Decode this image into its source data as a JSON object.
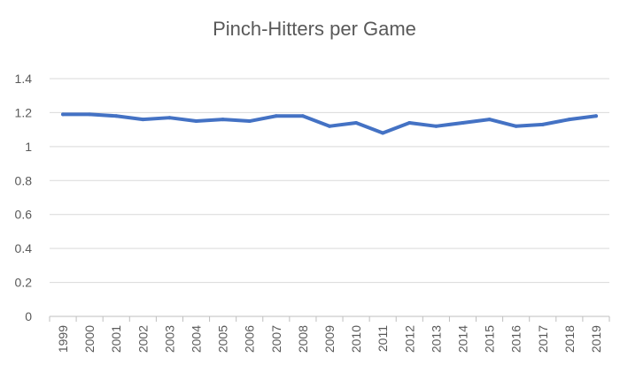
{
  "chart_data": {
    "type": "line",
    "title": "Pinch-Hitters per Game",
    "xlabel": "",
    "ylabel": "",
    "ylim": [
      0,
      1.4
    ],
    "yticks": [
      "0",
      "0.2",
      "0.4",
      "0.6",
      "0.8",
      "1",
      "1.2",
      "1.4"
    ],
    "grid": true,
    "legend": "none",
    "categories": [
      "1999",
      "2000",
      "2001",
      "2002",
      "2003",
      "2004",
      "2005",
      "2006",
      "2007",
      "2008",
      "2009",
      "2010",
      "2011",
      "2012",
      "2013",
      "2014",
      "2015",
      "2016",
      "2017",
      "2018",
      "2019"
    ],
    "series": [
      {
        "color": "#4472c4",
        "values": [
          1.19,
          1.19,
          1.18,
          1.16,
          1.17,
          1.15,
          1.16,
          1.15,
          1.18,
          1.18,
          1.12,
          1.14,
          1.08,
          1.14,
          1.12,
          1.14,
          1.16,
          1.12,
          1.13,
          1.16,
          1.18
        ]
      }
    ]
  }
}
